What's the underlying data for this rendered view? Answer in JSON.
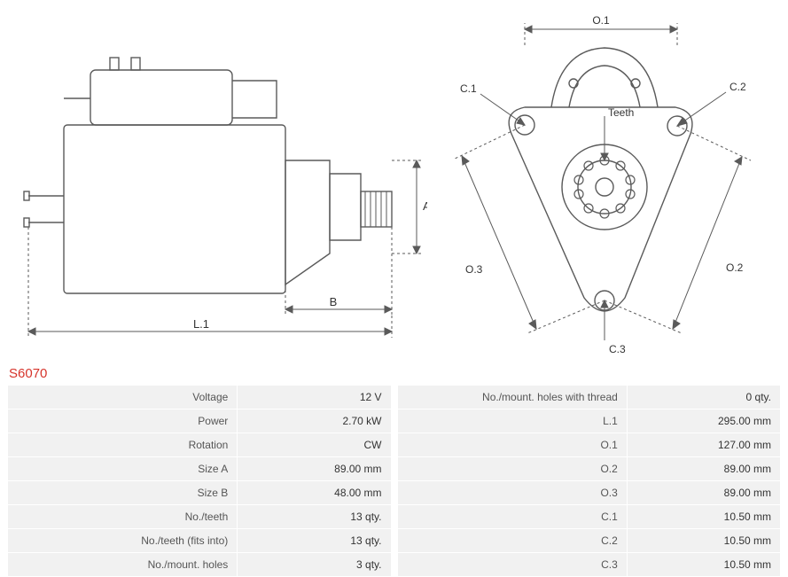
{
  "part_number": "S6070",
  "diagram_side": {
    "dim_A_label": "A",
    "dim_B_label": "B",
    "dim_L1_label": "L.1",
    "stroke": "#5a5a5a",
    "dash": "3,3"
  },
  "diagram_front": {
    "dim_O1_label": "O.1",
    "dim_O2_label": "O.2",
    "dim_O3_label": "O.3",
    "dim_C1_label": "C.1",
    "dim_C2_label": "C.2",
    "dim_C3_label": "C.3",
    "teeth_label": "Teeth",
    "stroke": "#5a5a5a",
    "dash": "3,3"
  },
  "specs_left": [
    {
      "k": "Voltage",
      "v": "12 V"
    },
    {
      "k": "Power",
      "v": "2.70 kW"
    },
    {
      "k": "Rotation",
      "v": "CW"
    },
    {
      "k": "Size A",
      "v": "89.00 mm"
    },
    {
      "k": "Size B",
      "v": "48.00 mm"
    },
    {
      "k": "No./teeth",
      "v": "13 qty."
    },
    {
      "k": "No./teeth (fits into)",
      "v": "13 qty."
    },
    {
      "k": "No./mount. holes",
      "v": "3 qty."
    }
  ],
  "specs_right": [
    {
      "k": "No./mount. holes with thread",
      "v": "0 qty."
    },
    {
      "k": "L.1",
      "v": "295.00 mm"
    },
    {
      "k": "O.1",
      "v": "127.00 mm"
    },
    {
      "k": "O.2",
      "v": "89.00 mm"
    },
    {
      "k": "O.3",
      "v": "89.00 mm"
    },
    {
      "k": "C.1",
      "v": "10.50 mm"
    },
    {
      "k": "C.2",
      "v": "10.50 mm"
    },
    {
      "k": "C.3",
      "v": "10.50 mm"
    }
  ],
  "colors": {
    "accent": "#d6342b",
    "row_bg": "#f1f1f1",
    "stroke": "#5a5a5a",
    "text": "#333333"
  }
}
